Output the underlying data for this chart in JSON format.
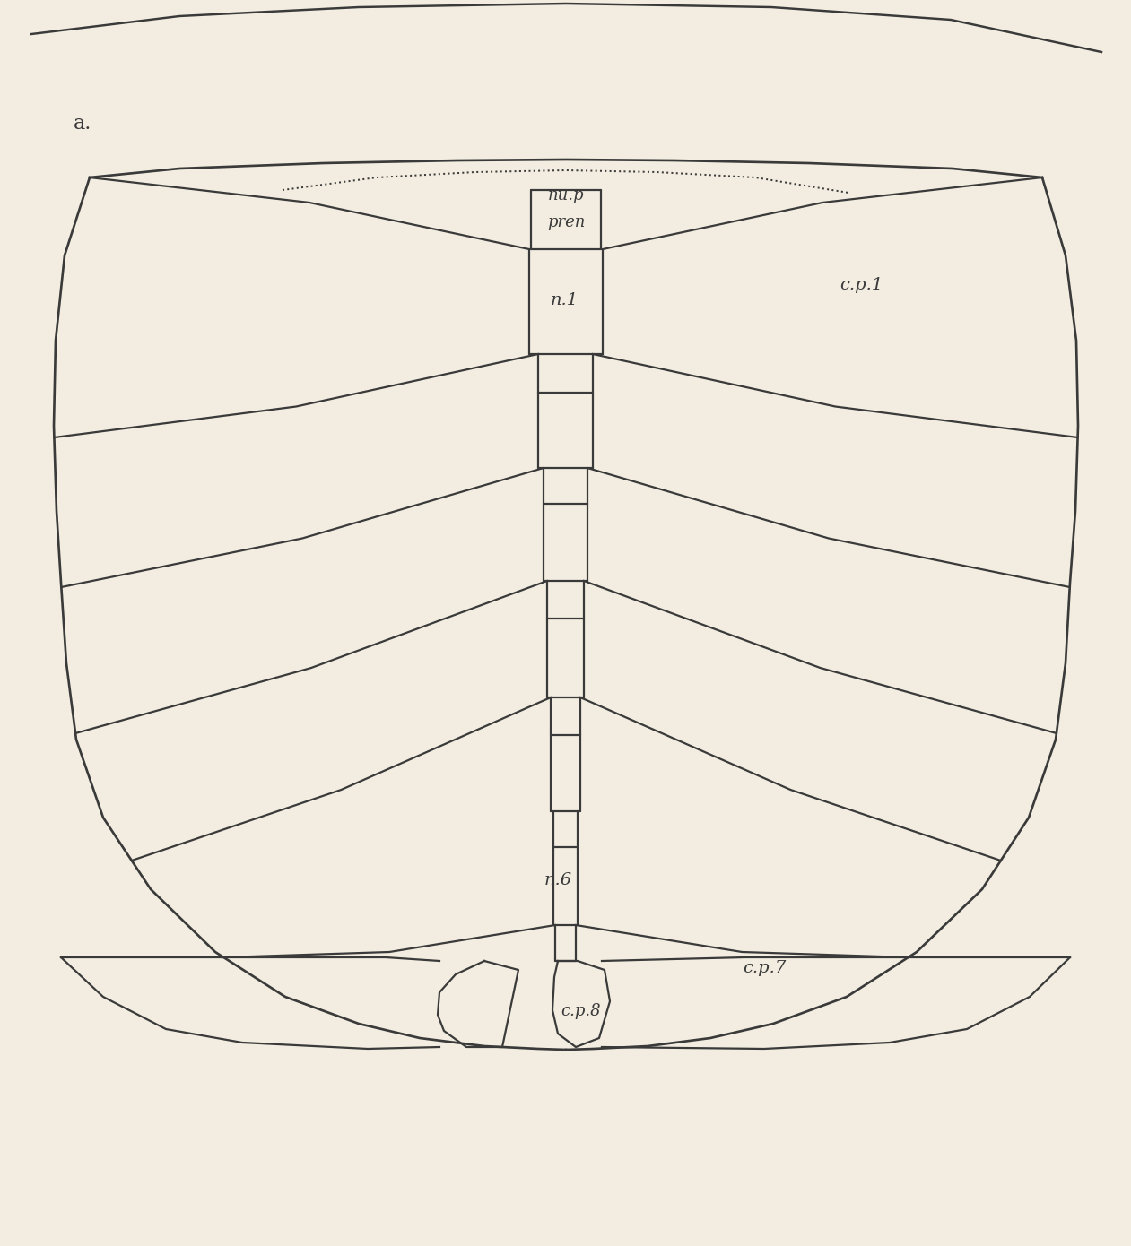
{
  "bg_color": "#f2ede0",
  "line_color": "#3a3a3a",
  "line_width": 1.6,
  "label_a": "a.",
  "label_nup": "nu.p",
  "label_pren": "pren",
  "label_n1": "n.1",
  "label_n6": "n.6",
  "label_cp1": "c.p.1",
  "label_cp7": "c.p.7",
  "label_cp8": "c.p.8",
  "font_size_main": 14,
  "font_size_a": 16,
  "font_size_small": 13
}
